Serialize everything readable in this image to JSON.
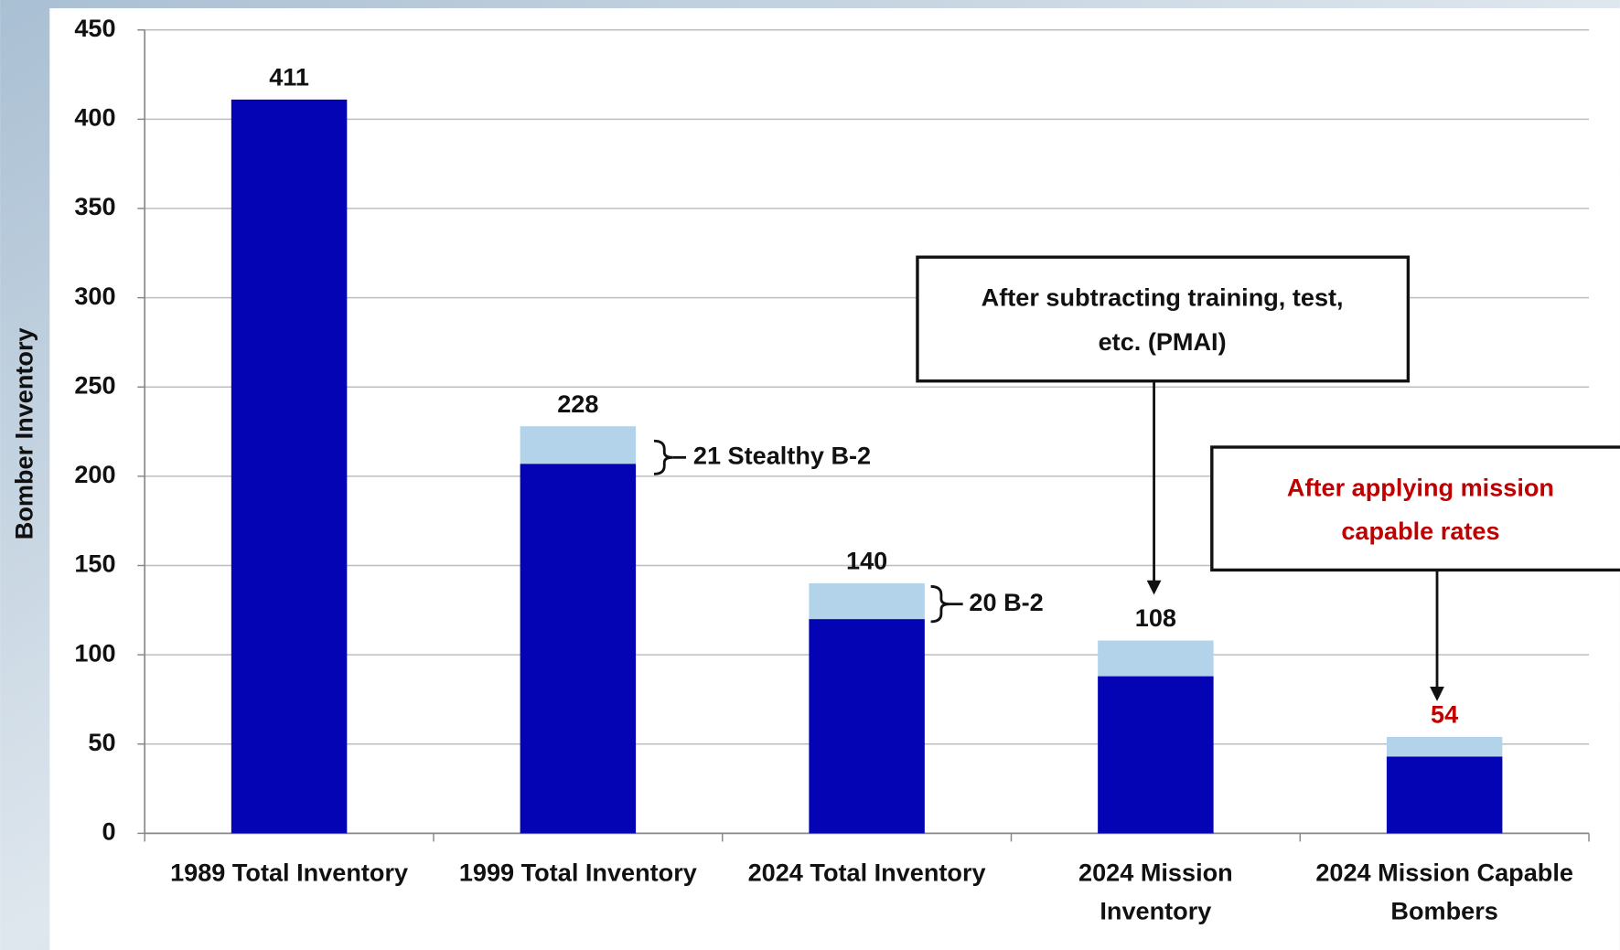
{
  "chart_data": {
    "type": "stacked_bar",
    "y_axis_label": "Bomber Inventory",
    "categories": [
      [
        "1989 Total Inventory"
      ],
      [
        "1999 Total Inventory"
      ],
      [
        "2024 Total Inventory"
      ],
      [
        "2024 Mission",
        "Inventory"
      ],
      [
        "2024 Mission Capable",
        "Bombers"
      ]
    ],
    "series": [
      {
        "color": "#0404b4",
        "values": [
          411,
          207,
          120,
          88,
          43
        ]
      },
      {
        "color": "#b3d3ea",
        "values": [
          null,
          21,
          20,
          20,
          11
        ]
      }
    ],
    "totals": [
      411,
      228,
      140,
      108,
      54
    ],
    "total_colors": [
      "#111111",
      "#111111",
      "#111111",
      "#111111",
      "#c00000"
    ],
    "ylim": [
      0,
      450
    ],
    "yticks": [
      0,
      50,
      100,
      150,
      200,
      250,
      300,
      350,
      400,
      450
    ],
    "grid": true,
    "annotations": {
      "b2_1999": "21 Stealthy B-2",
      "b2_2024": "20 B-2",
      "pmai_box": [
        "After subtracting training, test,",
        "etc. (PMAI)"
      ],
      "mc_box": [
        "After applying mission",
        "capable rates"
      ]
    }
  }
}
